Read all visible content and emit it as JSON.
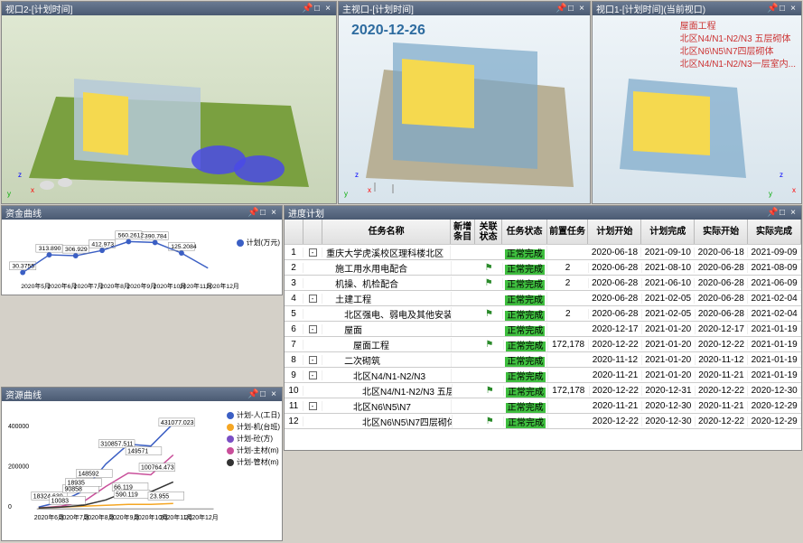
{
  "panels": {
    "vp2": {
      "title": "视口2-[计划时间]"
    },
    "vpMain": {
      "title": "主视口-[计划时间]",
      "date": "2020-12-26"
    },
    "vp1": {
      "title": "视口1-[计划时间](当前视口)",
      "legend": [
        "屋面工程",
        "北区N4/N1-N2/N3 五层砌体",
        "北区N6\\N5\\N7四层砌体",
        "北区N4/N1-N2/N3一层室内..."
      ]
    },
    "fund": {
      "title": "资金曲线"
    },
    "res": {
      "title": "资源曲线"
    },
    "sched": {
      "title": "进度计划"
    }
  },
  "fundChart": {
    "series": "计划(万元)",
    "x": [
      "2020年5月",
      "2020年6月",
      "2020年7月",
      "2020年8月",
      "2020年9月",
      "2020年10月",
      "2020年11月",
      "2020年12月"
    ],
    "labels": [
      "30.3755",
      "313.890",
      "306.929",
      "412.973",
      "560.2612",
      "390.784",
      "125.2084"
    ],
    "color": "#3b5fc4"
  },
  "resChart": {
    "x": [
      "2020年6月",
      "2020年7月",
      "2020年8月",
      "2020年9月",
      "2020年10月",
      "2020年11月",
      "2020年12月"
    ],
    "ytick": [
      "0",
      "200000",
      "400000"
    ],
    "series": [
      {
        "name": "计划-人(工日)",
        "color": "#3b5fc4"
      },
      {
        "name": "计划-机(台班)",
        "color": "#f5a623"
      },
      {
        "name": "计划-砼(方)",
        "color": "#7a4fc4"
      },
      {
        "name": "计划-主材(m)",
        "color": "#c94f9a"
      },
      {
        "name": "计划-管材(m)",
        "color": "#333333"
      }
    ],
    "labels": [
      "18324.630",
      "10083",
      "90858",
      "18935",
      "148592",
      "310857.511",
      "66.119",
      "590.119",
      "149571",
      "100764.473",
      "23.955",
      "431077.023"
    ]
  },
  "schedule": {
    "headers": [
      "",
      "",
      "任务名称",
      "新增条目",
      "关联状态",
      "任务状态",
      "前置任务",
      "计划开始",
      "计划完成",
      "实际开始",
      "实际完成"
    ],
    "rows": [
      {
        "i": "1",
        "toggle": "-",
        "indent": 0,
        "name": "重庆大学虎溪校区理科楼北区",
        "status": "正常完成",
        "pre": "",
        "ps": "2020-06-18",
        "pe": "2021-09-10",
        "as": "2020-06-18",
        "ae": "2021-09-09"
      },
      {
        "i": "2",
        "toggle": "",
        "indent": 1,
        "name": "施工用水用电配合",
        "flag": true,
        "status": "正常完成",
        "pre": "2",
        "ps": "2020-06-28",
        "pe": "2021-08-10",
        "as": "2020-06-28",
        "ae": "2021-08-09"
      },
      {
        "i": "3",
        "toggle": "",
        "indent": 1,
        "name": "机操、机检配合",
        "flag": true,
        "status": "正常完成",
        "pre": "2",
        "ps": "2020-06-28",
        "pe": "2021-06-10",
        "as": "2020-06-28",
        "ae": "2021-06-09"
      },
      {
        "i": "4",
        "toggle": "-",
        "indent": 1,
        "name": "土建工程",
        "status": "正常完成",
        "pre": "",
        "ps": "2020-06-28",
        "pe": "2021-02-05",
        "as": "2020-06-28",
        "ae": "2021-02-04"
      },
      {
        "i": "5",
        "toggle": "",
        "indent": 2,
        "name": "北区强电、弱电及其他安装工程线管预埋等配合",
        "flag": true,
        "status": "正常完成",
        "pre": "2",
        "ps": "2020-06-28",
        "pe": "2021-02-05",
        "as": "2020-06-28",
        "ae": "2021-02-04"
      },
      {
        "i": "6",
        "toggle": "-",
        "indent": 2,
        "name": "屋面",
        "status": "正常完成",
        "pre": "",
        "ps": "2020-12-17",
        "pe": "2021-01-20",
        "as": "2020-12-17",
        "ae": "2021-01-19"
      },
      {
        "i": "7",
        "toggle": "",
        "indent": 3,
        "name": "屋面工程",
        "flag": true,
        "status": "正常完成",
        "pre": "172,178",
        "ps": "2020-12-22",
        "pe": "2021-01-20",
        "as": "2020-12-22",
        "ae": "2021-01-19"
      },
      {
        "i": "8",
        "toggle": "-",
        "indent": 2,
        "name": "二次砌筑",
        "status": "正常完成",
        "pre": "",
        "ps": "2020-11-12",
        "pe": "2021-01-20",
        "as": "2020-11-12",
        "ae": "2021-01-19"
      },
      {
        "i": "9",
        "toggle": "-",
        "indent": 3,
        "name": "北区N4/N1-N2/N3",
        "status": "正常完成",
        "pre": "",
        "ps": "2020-11-21",
        "pe": "2021-01-20",
        "as": "2020-11-21",
        "ae": "2021-01-19"
      },
      {
        "i": "10",
        "toggle": "",
        "indent": 4,
        "name": "北区N4/N1-N2/N3 五层砌体",
        "flag": true,
        "status": "正常完成",
        "pre": "172,178",
        "ps": "2020-12-22",
        "pe": "2020-12-31",
        "as": "2020-12-22",
        "ae": "2020-12-30"
      },
      {
        "i": "11",
        "toggle": "-",
        "indent": 3,
        "name": "北区N6\\N5\\N7",
        "status": "正常完成",
        "pre": "",
        "ps": "2020-11-21",
        "pe": "2020-12-30",
        "as": "2020-11-21",
        "ae": "2020-12-29"
      },
      {
        "i": "12",
        "toggle": "",
        "indent": 4,
        "name": "北区N6\\N5\\N7四层砌体",
        "flag": true,
        "status": "正常完成",
        "pre": "",
        "ps": "2020-12-22",
        "pe": "2020-12-30",
        "as": "2020-12-22",
        "ae": "2020-12-29"
      }
    ]
  }
}
